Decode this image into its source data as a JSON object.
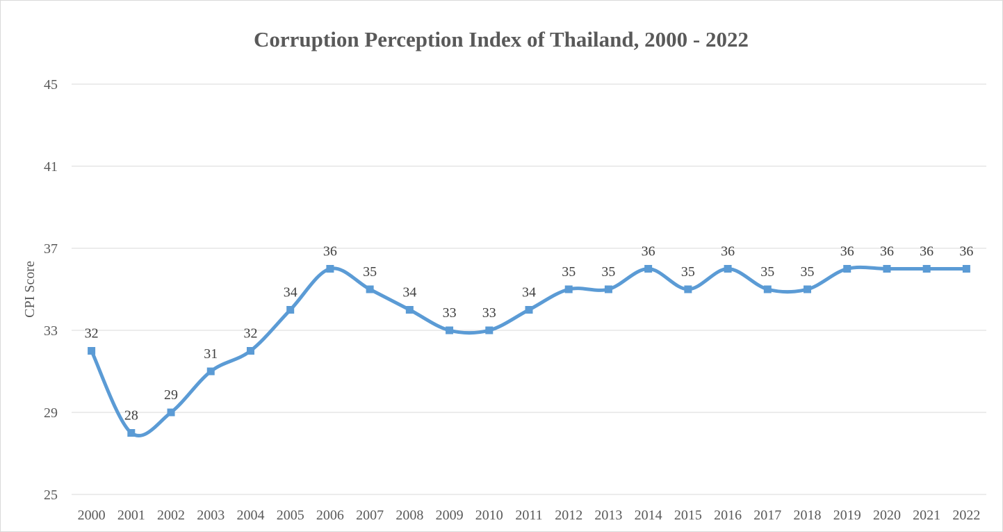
{
  "chart_data": {
    "type": "line",
    "title": "Corruption Perception Index of Thailand, 2000 - 2022",
    "xlabel": "",
    "ylabel": "CPI Score",
    "ylim": [
      25,
      45
    ],
    "yticks": [
      25,
      29,
      33,
      37,
      41,
      45
    ],
    "grid": true,
    "legend": "none",
    "smooth": true,
    "colors": {
      "series": "#5b9bd5"
    },
    "categories": [
      "2000",
      "2001",
      "2002",
      "2003",
      "2004",
      "2005",
      "2006",
      "2007",
      "2008",
      "2009",
      "2010",
      "2011",
      "2012",
      "2013",
      "2014",
      "2015",
      "2016",
      "2017",
      "2018",
      "2019",
      "2020",
      "2021",
      "2022"
    ],
    "series": [
      {
        "values": [
          32,
          28,
          29,
          31,
          32,
          34,
          36,
          35,
          34,
          33,
          33,
          34,
          35,
          35,
          36,
          35,
          36,
          35,
          35,
          36,
          36,
          36,
          36
        ]
      }
    ]
  }
}
